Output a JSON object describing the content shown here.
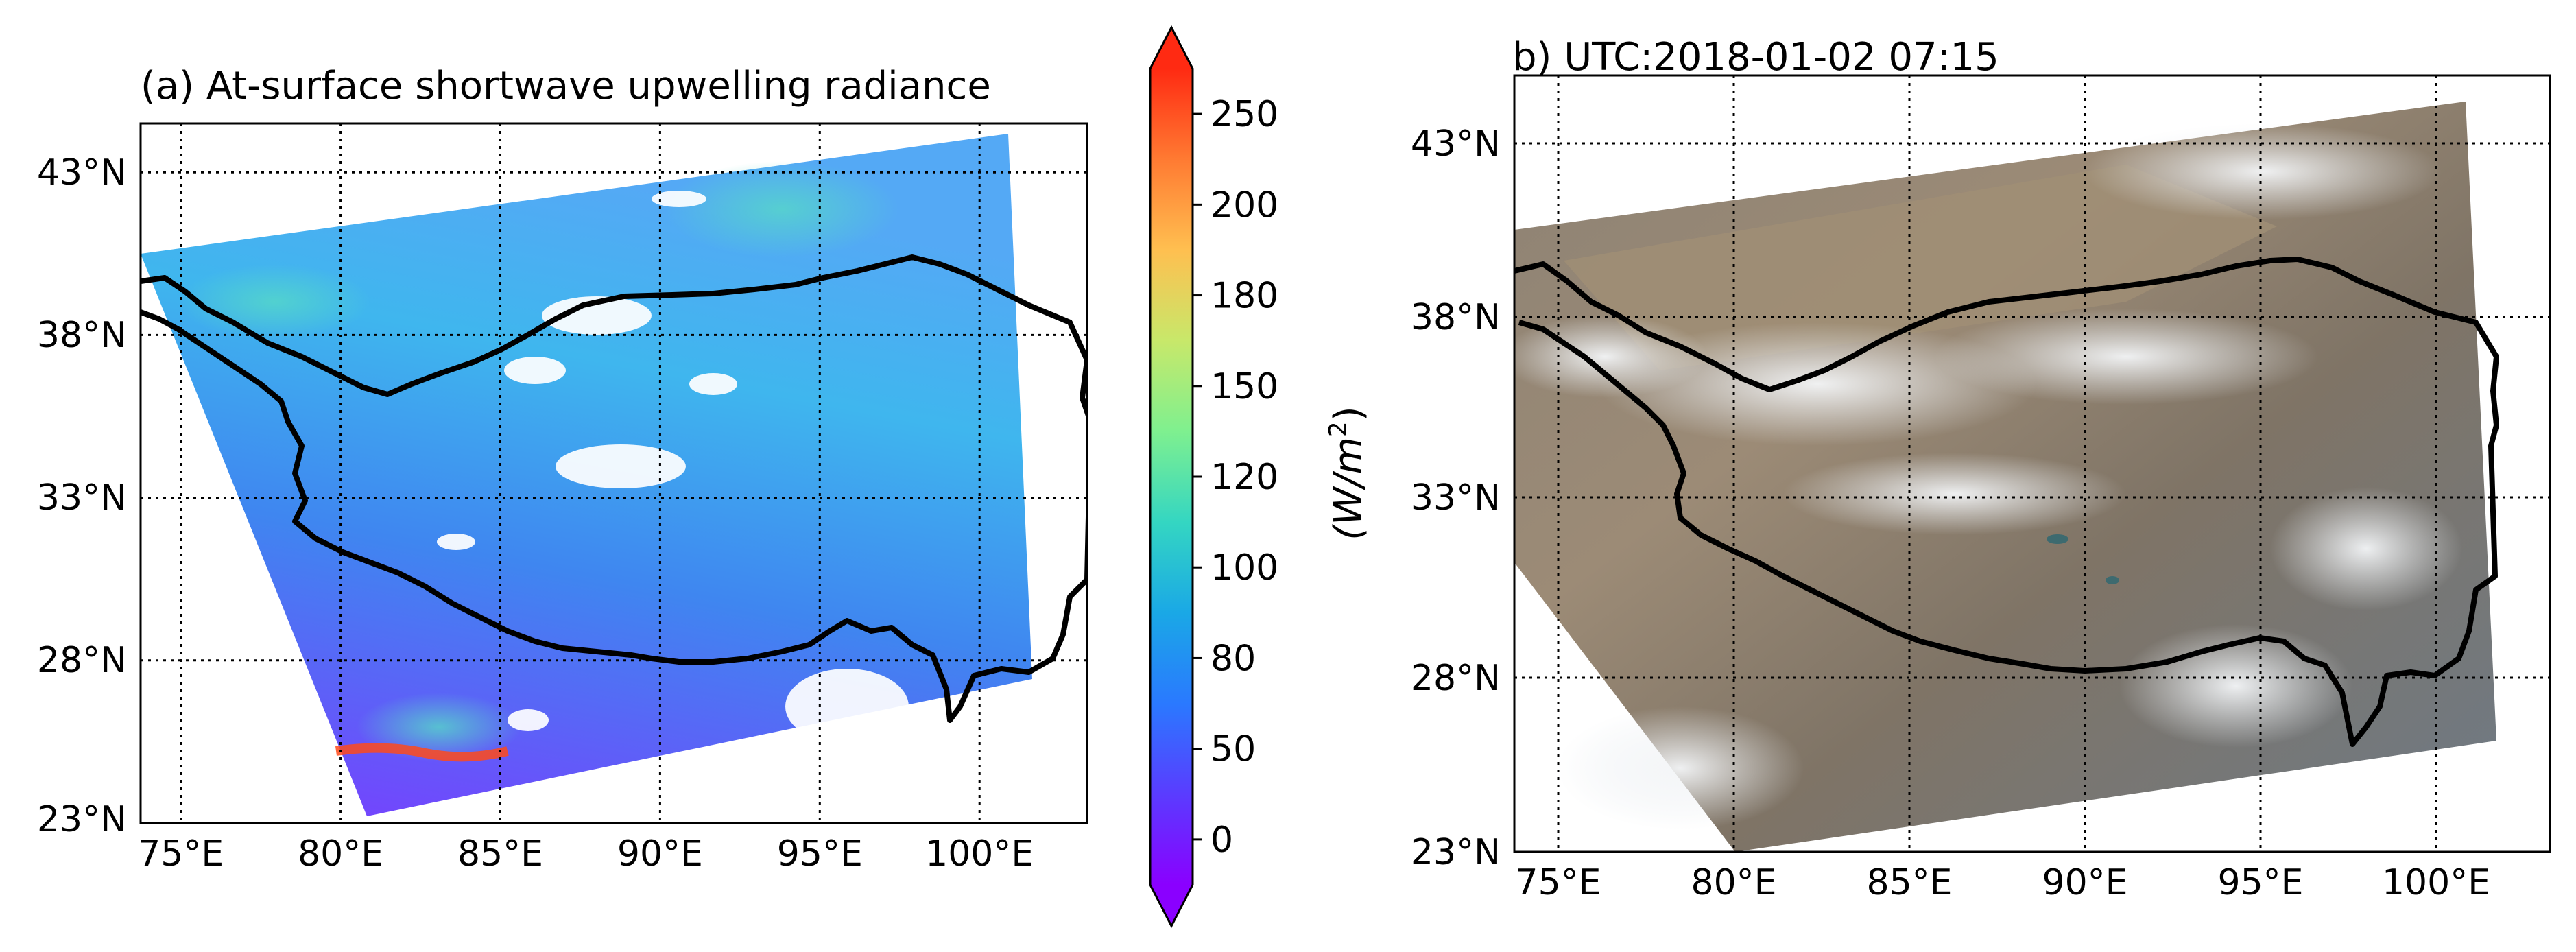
{
  "colors": {
    "background": "#ffffff",
    "ink": "#000000",
    "cbar_stops": [
      "#8a00ff",
      "#5a3cff",
      "#2a79ff",
      "#1aa8e6",
      "#34d6c2",
      "#7ff08f",
      "#c8e86a",
      "#ffbf50",
      "#ff7a32",
      "#ff2a12"
    ]
  },
  "chart_data": [
    {
      "id": "panel-a",
      "type": "heatmap",
      "title": "(a) At-surface shortwave upwelling radiance",
      "projection": "lat-lon map",
      "xlim": [
        73.5,
        103
      ],
      "ylim": [
        23,
        44.5
      ],
      "xticks": [
        75,
        80,
        85,
        90,
        95,
        100
      ],
      "xtick_labels": [
        "75°E",
        "80°E",
        "85°E",
        "90°E",
        "95°E",
        "100°E"
      ],
      "yticks": [
        23,
        28,
        33,
        38,
        43
      ],
      "ytick_labels": [
        "23°N",
        "28°N",
        "33°N",
        "38°N",
        "43°N"
      ],
      "grid": "dotted",
      "overlay": "Tibetan Plateau boundary (black outline)",
      "colorbar": {
        "label": "(W/m²)",
        "label_main": "(W/m",
        "label_sup": "2",
        "label_end": ")",
        "ticks": [
          0,
          50,
          80,
          100,
          120,
          150,
          180,
          200,
          250
        ],
        "tick_labels": [
          "0",
          "50",
          "80",
          "100",
          "120",
          "150",
          "180",
          "200",
          "250"
        ],
        "extend": "both",
        "colormap": "rainbow"
      }
    },
    {
      "id": "panel-b",
      "type": "heatmap",
      "title": "b) UTC:2018-01-02 07:15",
      "projection": "lat-lon map (true-color satellite image)",
      "xlim": [
        73.5,
        103
      ],
      "ylim": [
        23,
        44.5
      ],
      "xticks": [
        75,
        80,
        85,
        90,
        95,
        100
      ],
      "xtick_labels": [
        "75°E",
        "80°E",
        "85°E",
        "90°E",
        "95°E",
        "100°E"
      ],
      "yticks": [
        23,
        28,
        33,
        38,
        43
      ],
      "ytick_labels": [
        "23°N",
        "28°N",
        "33°N",
        "38°N",
        "43°N"
      ],
      "grid": "dotted",
      "overlay": "Tibetan Plateau boundary (black outline)"
    }
  ]
}
